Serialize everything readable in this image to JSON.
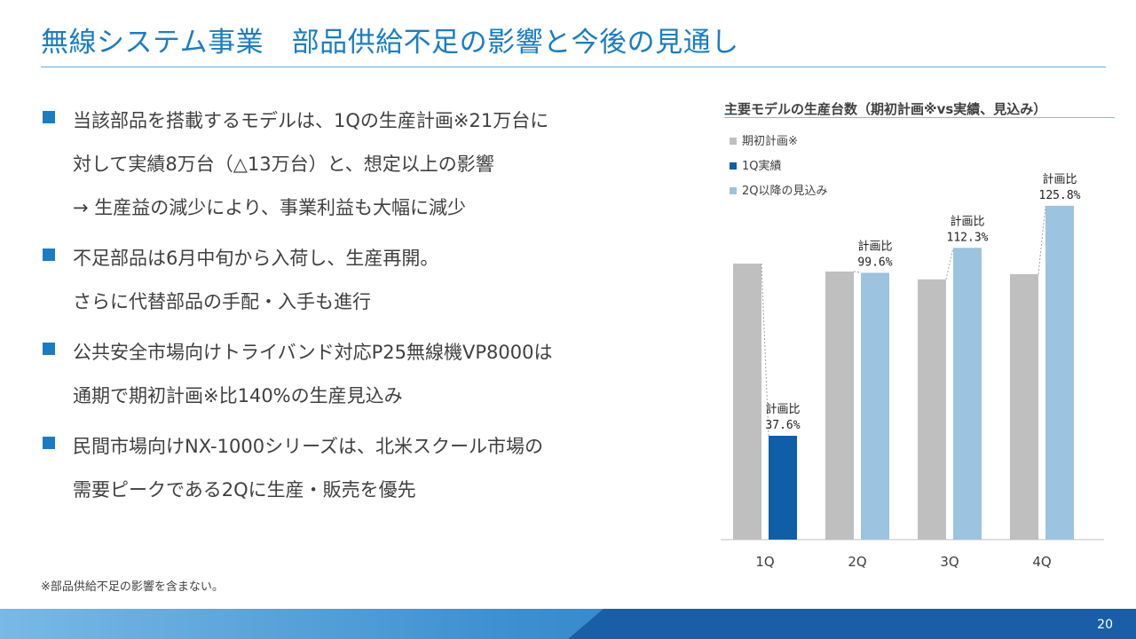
{
  "slide": {
    "title": "無線システム事業　部品供給不足の影響と今後の見通し",
    "page_number": "20",
    "footnote": "※部品供給不足の影響を含まない。"
  },
  "bullets": [
    {
      "lines": [
        "当該部品を搭載するモデルは、1Qの生産計画※21万台に",
        "対して実績8万台（△13万台）と、想定以上の影響",
        "→ 生産益の減少により、事業利益も大幅に減少"
      ]
    },
    {
      "lines": [
        "不足部品は6月中旬から入荷し、生産再開。",
        "さらに代替部品の手配・入手も進行"
      ]
    },
    {
      "lines": [
        "公共安全市場向けトライバンド対応P25無線機VP8000は",
        "通期で期初計画※比140%の生産見込み"
      ]
    },
    {
      "lines": [
        "民間市場向けNX-1000シリーズは、北米スクール市場の",
        "需要ピークである2Qに生産・販売を優先"
      ]
    }
  ],
  "chart_data": {
    "type": "bar",
    "title": "主要モデルの生産台数（期初計画※vs実績、見込み）",
    "categories": [
      "1Q",
      "2Q",
      "3Q",
      "4Q"
    ],
    "series": [
      {
        "name": "期初計画※",
        "color": "#bfbfbf",
        "values": [
          21.0,
          20.4,
          19.8,
          20.2
        ]
      },
      {
        "name": "1Q実績",
        "color": "#0f5ea8",
        "values": [
          7.9,
          null,
          null,
          null
        ]
      },
      {
        "name": "2Q以降の見込み",
        "color": "#9cc3e0",
        "values": [
          null,
          20.3,
          22.2,
          25.4
        ]
      }
    ],
    "annotations": [
      {
        "label": "計画比",
        "ratio": "37.6%"
      },
      {
        "label": "計画比",
        "ratio": "99.6%"
      },
      {
        "label": "計画比",
        "ratio": "112.3%"
      },
      {
        "label": "計画比",
        "ratio": "125.8%"
      }
    ],
    "ylim": [
      0,
      26
    ]
  }
}
